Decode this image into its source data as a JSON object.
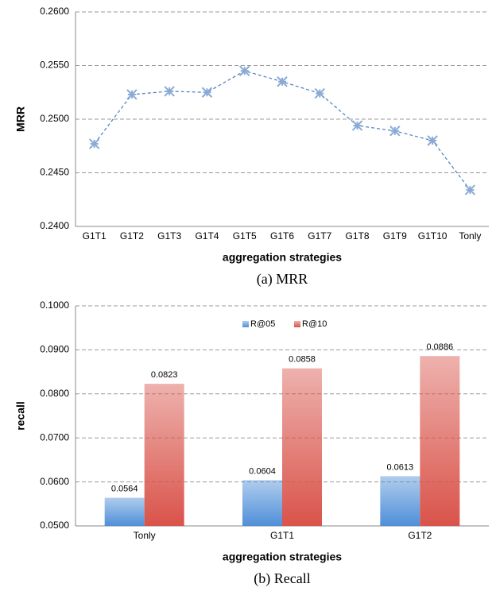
{
  "chart_data": [
    {
      "type": "line",
      "caption": "(a) MRR",
      "xlabel": "aggregation strategies",
      "ylabel": "MRR",
      "categories": [
        "G1T1",
        "G1T2",
        "G1T3",
        "G1T4",
        "G1T5",
        "G1T6",
        "G1T7",
        "G1T8",
        "G1T9",
        "G1T10",
        "Tonly"
      ],
      "series": [
        {
          "name": "MRR",
          "color": "#4a7ebb",
          "values": [
            0.2477,
            0.2523,
            0.2526,
            0.2525,
            0.2545,
            0.2535,
            0.2524,
            0.2494,
            0.2489,
            0.248,
            0.2434
          ]
        }
      ],
      "ylim": [
        0.24,
        0.26
      ],
      "yticks": [
        {
          "value": 0.24,
          "label": "0.2400"
        },
        {
          "value": 0.245,
          "label": "0.2450"
        },
        {
          "value": 0.25,
          "label": "0.2500"
        },
        {
          "value": 0.255,
          "label": "0.2550"
        },
        {
          "value": 0.26,
          "label": "0.2600"
        }
      ],
      "grid": true
    },
    {
      "type": "bar",
      "caption": "(b) Recall",
      "xlabel": "aggregation strategies",
      "ylabel": "recall",
      "categories": [
        "Tonly",
        "G1T1",
        "G1T2"
      ],
      "series": [
        {
          "name": "R@05",
          "color": "#4f8fd8",
          "values": [
            0.0564,
            0.0604,
            0.0613
          ]
        },
        {
          "name": "R@10",
          "color": "#d9534a",
          "values": [
            0.0823,
            0.0858,
            0.0886
          ]
        }
      ],
      "ylim": [
        0.05,
        0.1
      ],
      "yticks": [
        {
          "value": 0.05,
          "label": "0.0500"
        },
        {
          "value": 0.06,
          "label": "0.0600"
        },
        {
          "value": 0.07,
          "label": "0.0700"
        },
        {
          "value": 0.08,
          "label": "0.0800"
        },
        {
          "value": 0.09,
          "label": "0.0900"
        },
        {
          "value": 0.1,
          "label": "0.1000"
        }
      ],
      "grid": true,
      "legend": "top"
    }
  ]
}
